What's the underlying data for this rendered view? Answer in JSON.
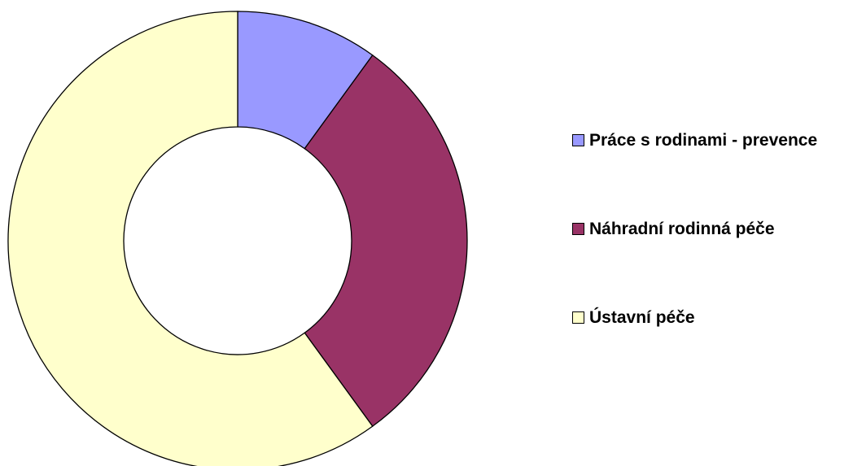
{
  "chart_data": {
    "type": "donut",
    "categories": [
      "Práce s rodinami - prevence",
      "Náhradní rodinná péče",
      "Ústavní péče"
    ],
    "values": [
      10,
      30,
      60
    ],
    "colors": [
      "#9999ff",
      "#993366",
      "#ffffcc"
    ],
    "legend": "right"
  }
}
